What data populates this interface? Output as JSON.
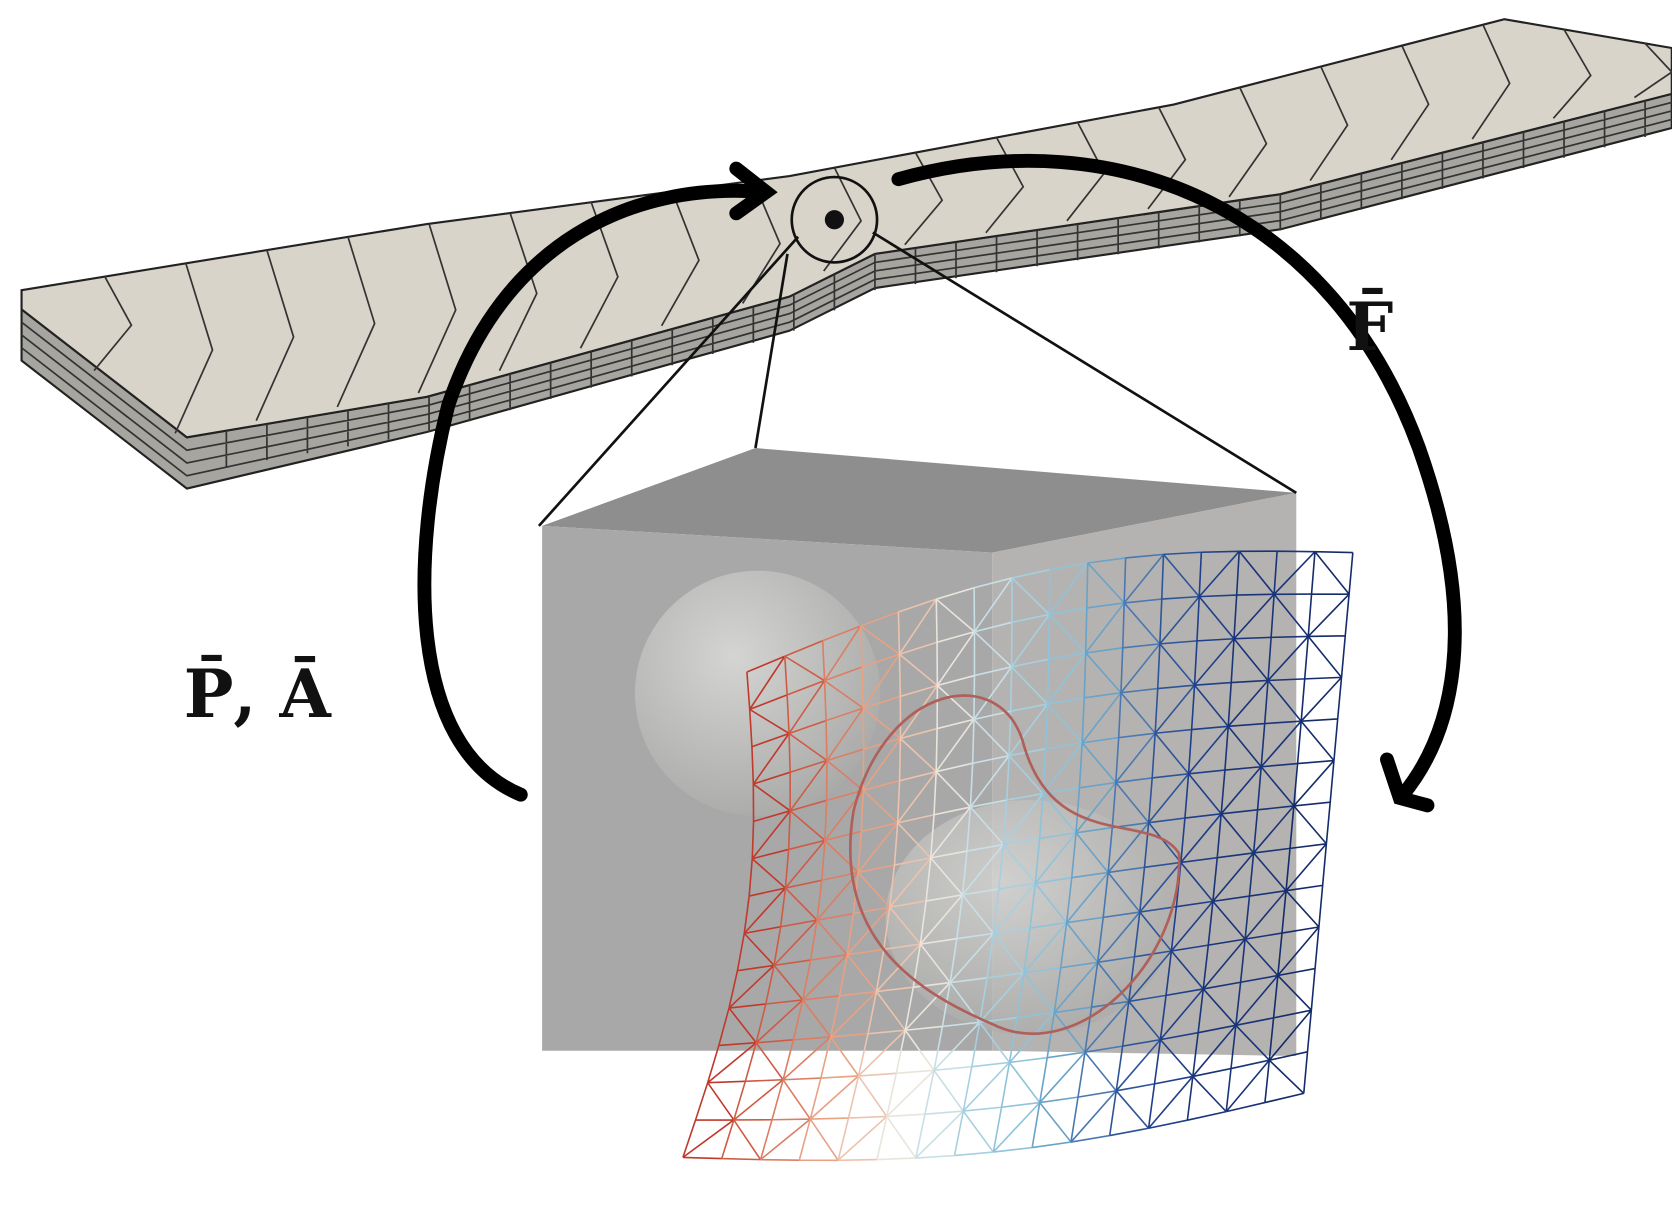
{
  "labels": {
    "force": "F̄",
    "pa": "P̄, Ā"
  }
}
